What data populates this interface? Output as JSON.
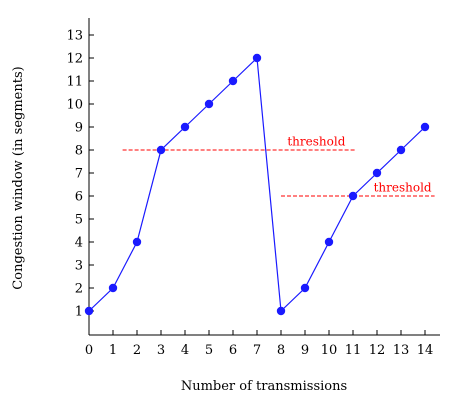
{
  "chart_data": {
    "type": "line",
    "xlabel": "Number of transmissions",
    "ylabel": "Congestion window (in segments)",
    "xlim": [
      0,
      14
    ],
    "ylim": [
      0,
      13
    ],
    "x_ticks": [
      "0",
      "1",
      "2",
      "3",
      "4",
      "5",
      "6",
      "7",
      "8",
      "9",
      "10",
      "11",
      "12",
      "13",
      "14"
    ],
    "y_ticks": [
      "1",
      "2",
      "3",
      "4",
      "5",
      "6",
      "7",
      "8",
      "9",
      "10",
      "11",
      "12",
      "13"
    ],
    "grid": false,
    "series": [
      {
        "x": [
          0,
          1,
          2,
          3,
          4,
          5,
          6,
          7,
          8,
          9,
          10,
          11,
          12,
          13,
          14
        ],
        "values": [
          1,
          2,
          4,
          8,
          9,
          10,
          11,
          12,
          1,
          2,
          4,
          6,
          7,
          8,
          9
        ],
        "color": "#1a1aff"
      }
    ],
    "annotations": [
      {
        "type": "hline",
        "label": "threshold",
        "y": 8,
        "x_start": 1.4,
        "x_end": 11.1,
        "color": "#ff0000"
      },
      {
        "type": "hline",
        "label": "threshold",
        "y": 6,
        "x_start": 8,
        "x_end": 14.4,
        "color": "#ff0000"
      }
    ]
  }
}
